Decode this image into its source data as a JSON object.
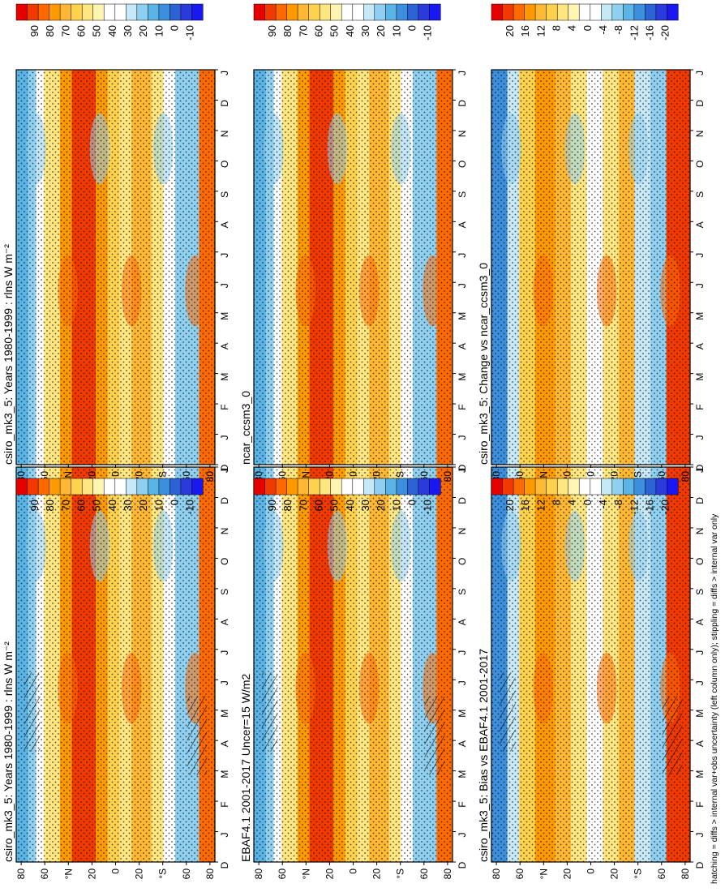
{
  "figure": {
    "footer": "hatching = diffs > internal var+obs uncertainty (left column only); stippling = diffs > internal var only"
  },
  "colorbars": {
    "field": {
      "labels": [
        "90",
        "80",
        "70",
        "60",
        "50",
        "40",
        "30",
        "20",
        "10",
        "0",
        "-10"
      ],
      "colors": [
        "#e60000",
        "#f23a00",
        "#ff6a00",
        "#ff9900",
        "#ffb833",
        "#ffd24d",
        "#ffe680",
        "#fff5b3",
        "#ffffff",
        "#ffffff",
        "#c6e8f7",
        "#8fd0f0",
        "#5ab4e6",
        "#3c8fdc",
        "#2b62d4",
        "#2a3adb",
        "#1a18f0"
      ]
    },
    "diff": {
      "labels": [
        "20",
        "16",
        "12",
        "8",
        "4",
        "0",
        "-4",
        "-8",
        "-12",
        "-16",
        "-20"
      ],
      "colors": [
        "#e60000",
        "#f23a00",
        "#ff6a00",
        "#ff9900",
        "#ffb833",
        "#ffd24d",
        "#ffe680",
        "#fff5b3",
        "#ffffff",
        "#ffffff",
        "#c6e8f7",
        "#8fd0f0",
        "#5ab4e6",
        "#3c8fdc",
        "#2b62d4",
        "#2a3adb",
        "#1a18f0"
      ]
    }
  },
  "chart_data": [
    {
      "type": "heatmap",
      "title": "csiro_mk3_5: Years 1980-1999 : rlns W m⁻²",
      "x": [
        "D",
        "J",
        "F",
        "M",
        "A",
        "M",
        "J",
        "J",
        "A",
        "S",
        "O",
        "N",
        "D",
        "J"
      ],
      "y": [
        "80",
        "60",
        "°N",
        "20",
        "0",
        "20",
        "°S",
        "60",
        "80"
      ],
      "colorbar": "field",
      "overlay": "hatching+stippling"
    },
    {
      "type": "heatmap",
      "title": "EBAF4.1 2001-2017 Uncer=15 W/m2",
      "x": [
        "D",
        "J",
        "F",
        "M",
        "A",
        "M",
        "J",
        "J",
        "A",
        "S",
        "O",
        "N",
        "D",
        "J"
      ],
      "y": [
        "80",
        "60",
        "°N",
        "20",
        "0",
        "20",
        "°S",
        "60",
        "80"
      ],
      "colorbar": "field",
      "overlay": "hatching+stippling"
    },
    {
      "type": "heatmap",
      "title": "csiro_mk3_5: Bias vs EBAF4.1 2001-2017",
      "x": [
        "D",
        "J",
        "F",
        "M",
        "A",
        "M",
        "J",
        "J",
        "A",
        "S",
        "O",
        "N",
        "D",
        "J"
      ],
      "y": [
        "80",
        "60",
        "°N",
        "20",
        "0",
        "20",
        "°S",
        "60",
        "80"
      ],
      "colorbar": "diff",
      "overlay": "hatching+stippling"
    },
    {
      "type": "heatmap",
      "title": "csiro_mk3_5: Years 1980-1999 : rlns W m⁻²",
      "x": [
        "D",
        "J",
        "F",
        "M",
        "A",
        "M",
        "J",
        "J",
        "A",
        "S",
        "O",
        "N",
        "D",
        "J"
      ],
      "y": [
        "80",
        "60",
        "°N",
        "20",
        "0",
        "20",
        "°S",
        "60",
        "80"
      ],
      "colorbar": "field",
      "overlay": "stippling"
    },
    {
      "type": "heatmap",
      "title": "ncar_ccsm3_0",
      "x": [
        "D",
        "J",
        "F",
        "M",
        "A",
        "M",
        "J",
        "J",
        "A",
        "S",
        "O",
        "N",
        "D",
        "J"
      ],
      "y": [
        "80",
        "60",
        "°N",
        "20",
        "0",
        "20",
        "°S",
        "60",
        "80"
      ],
      "colorbar": "field",
      "overlay": "stippling"
    },
    {
      "type": "heatmap",
      "title": "csiro_mk3_5: Change vs ncar_ccsm3_0",
      "x": [
        "D",
        "J",
        "F",
        "M",
        "A",
        "M",
        "J",
        "J",
        "A",
        "S",
        "O",
        "N",
        "D",
        "J"
      ],
      "y": [
        "80",
        "60",
        "°N",
        "20",
        "0",
        "20",
        "°S",
        "60",
        "80"
      ],
      "colorbar": "diff",
      "overlay": "stippling"
    }
  ]
}
